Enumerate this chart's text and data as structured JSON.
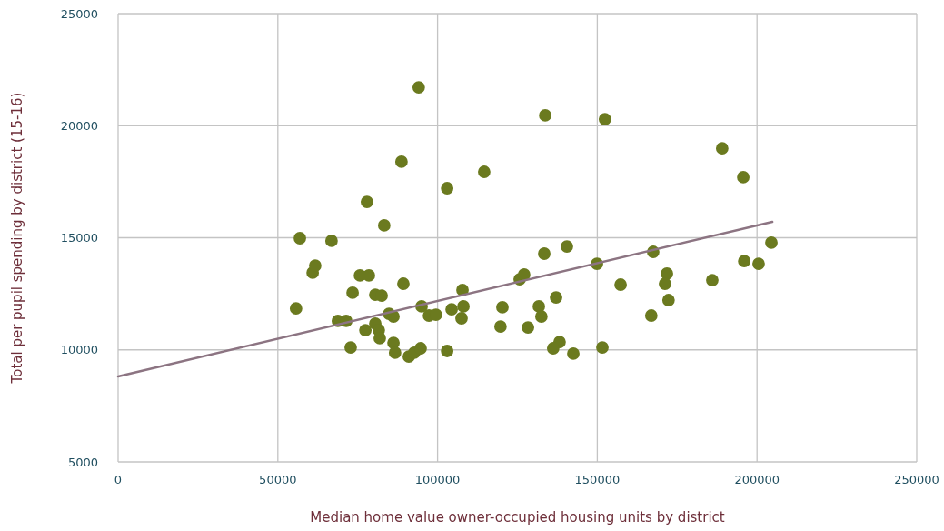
{
  "chart_data": {
    "type": "scatter",
    "xlabel": "Median home value owner-occupied housing units by district",
    "ylabel": "Total per pupil spending by district  (15-16)",
    "xlim": [
      0,
      250000
    ],
    "ylim": [
      5000,
      25000
    ],
    "xticks": [
      0,
      50000,
      100000,
      150000,
      200000,
      250000
    ],
    "yticks": [
      5000,
      10000,
      15000,
      20000,
      25000
    ],
    "grid": true,
    "series": [
      {
        "marker": "circle",
        "color": "#6b7a1f",
        "x": [
          55700,
          56900,
          60900,
          61700,
          66800,
          73400,
          68800,
          71400,
          72800,
          75700,
          78500,
          77900,
          77400,
          80500,
          82500,
          80500,
          81600,
          81900,
          83300,
          84800,
          86200,
          86200,
          86700,
          88700,
          89300,
          91000,
          92700,
          94100,
          94700,
          95000,
          97300,
          99500,
          103000,
          103000,
          104400,
          108100,
          107500,
          107800,
          114600,
          120300,
          119700,
          128300,
          125700,
          127100,
          133700,
          152400,
          189100,
          195700,
          204500,
          196000,
          200500,
          133400,
          140500,
          149900,
          167500,
          157300,
          171800,
          171200,
          172300,
          166900,
          186000,
          137100,
          131700,
          132500,
          138200,
          136200,
          142500,
          151600
        ],
        "values": [
          11850,
          14980,
          13440,
          13760,
          14860,
          12550,
          11290,
          11290,
          10110,
          13320,
          13320,
          16600,
          10880,
          12460,
          12420,
          11170,
          10880,
          10520,
          15550,
          11610,
          11490,
          10310,
          9870,
          18390,
          12950,
          9700,
          9870,
          21710,
          10070,
          11940,
          11530,
          11570,
          17210,
          9950,
          11810,
          11940,
          11410,
          12670,
          17940,
          11900,
          11040,
          11000,
          13150,
          13360,
          20460,
          20290,
          18990,
          17700,
          14780,
          13960,
          13840,
          14290,
          14610,
          13840,
          14370,
          12910,
          13400,
          12950,
          12220,
          11530,
          13110,
          12340,
          11940,
          11490,
          10350,
          10070,
          9830,
          10110
        ]
      },
      {
        "type": "line",
        "line_style": "solid",
        "color": "#8c7482",
        "x": [
          0,
          204800
        ],
        "values": [
          8810,
          15710
        ]
      }
    ]
  }
}
